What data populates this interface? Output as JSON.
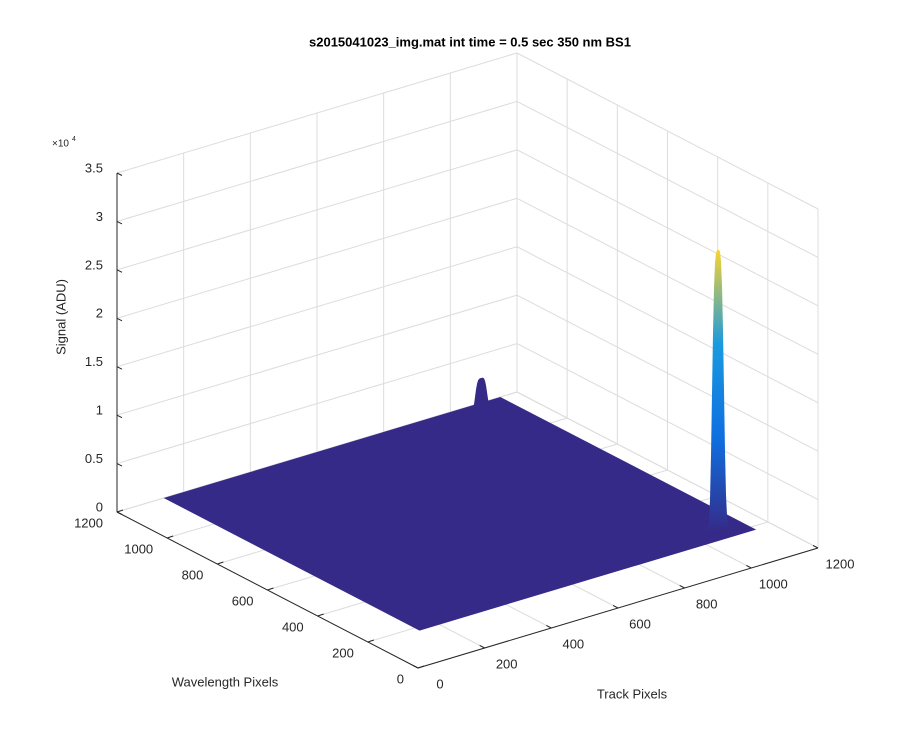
{
  "chart_data": {
    "type": "surface3d",
    "title": "s2015041023_img.mat int time = 0.5 sec  350 nm BS1",
    "xlabel": "Track Pixels",
    "ylabel": "Wavelength Pixels",
    "zlabel": "Signal (ADU)",
    "z_multiplier": "×10",
    "z_exponent": "4",
    "xlim": [
      0,
      1200
    ],
    "xticks": [
      0,
      200,
      400,
      600,
      800,
      1000,
      1200
    ],
    "ylim": [
      0,
      1200
    ],
    "yticks": [
      0,
      200,
      400,
      600,
      800,
      1000,
      1200
    ],
    "zlim": [
      0,
      35000
    ],
    "zticks": [
      0,
      {
        "value": 5000,
        "label": "0.5"
      },
      {
        "value": 10000,
        "label": "1"
      },
      {
        "value": 15000,
        "label": "1.5"
      },
      {
        "value": 20000,
        "label": "2"
      },
      {
        "value": 25000,
        "label": "2.5"
      },
      {
        "value": 30000,
        "label": "3"
      },
      {
        "value": 35000,
        "label": "3.5"
      }
    ],
    "grid": true,
    "surface_track": [
      140,
      1150
    ],
    "surface_wavelength": [
      180,
      1200
    ],
    "base_color": "#352a87",
    "peak_colors": [
      "#352a87",
      "#0f6fe0",
      "#1a9ae0",
      "#f9d42e"
    ],
    "peaks": [
      {
        "track": 1066,
        "wavelength": 1165,
        "signal": 3300
      },
      {
        "track": 1094,
        "wavelength": 258,
        "signal": 28400
      }
    ]
  }
}
